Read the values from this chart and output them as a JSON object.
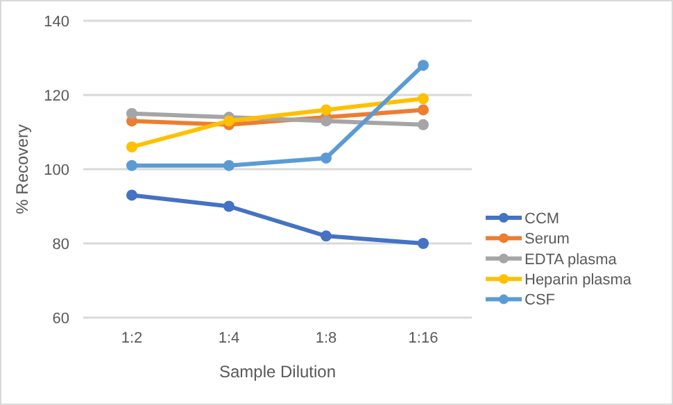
{
  "chart_data": {
    "type": "line",
    "xlabel": "Sample Dilution",
    "ylabel": "% Recovery",
    "categories": [
      "1:2",
      "1:4",
      "1:8",
      "1:16"
    ],
    "series": [
      {
        "name": "CCM",
        "color": "#4472c4",
        "values": [
          93,
          90,
          82,
          80
        ]
      },
      {
        "name": "Serum",
        "color": "#ed7d31",
        "values": [
          113,
          112,
          114,
          116
        ]
      },
      {
        "name": "EDTA plasma",
        "color": "#a5a5a5",
        "values": [
          115,
          114,
          113,
          112
        ]
      },
      {
        "name": "Heparin plasma",
        "color": "#ffc000",
        "values": [
          106,
          113,
          116,
          119
        ]
      },
      {
        "name": "CSF",
        "color": "#5b9bd5",
        "values": [
          101,
          101,
          103,
          128
        ]
      }
    ],
    "ylim": [
      60,
      140
    ],
    "yticks": [
      60,
      80,
      100,
      120,
      140
    ],
    "grid": "y",
    "legend": "right",
    "marker": "circle",
    "line_style": "solid"
  }
}
